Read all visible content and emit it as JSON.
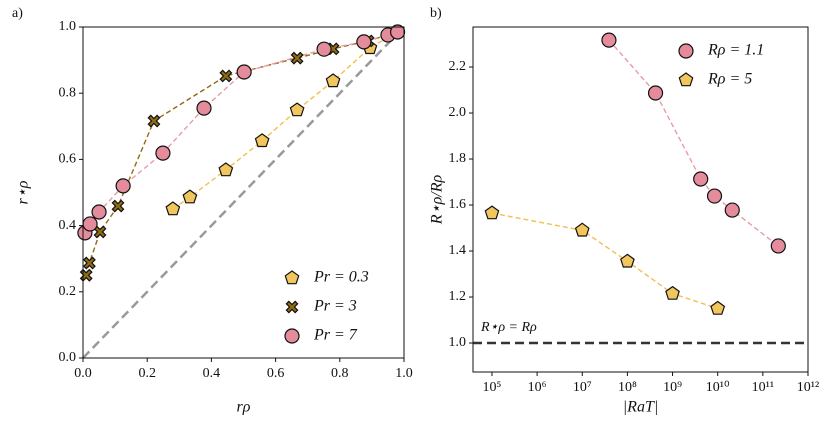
{
  "chart_data": [
    {
      "type": "scatter",
      "panel_label": "a)",
      "xlabel": "rρ",
      "ylabel": "r⋆ρ",
      "xlim": [
        0,
        1
      ],
      "ylim": [
        0,
        1
      ],
      "xticks": [
        {
          "value": 0,
          "label": "0.0"
        },
        {
          "value": 0.2,
          "label": "0.2"
        },
        {
          "value": 0.4,
          "label": "0.4"
        },
        {
          "value": 0.6,
          "label": "0.6"
        },
        {
          "value": 0.8,
          "label": "0.8"
        },
        {
          "value": 1,
          "label": "1.0"
        }
      ],
      "yticks": [
        {
          "value": 0,
          "label": "0.0"
        },
        {
          "value": 0.2,
          "label": "0.2"
        },
        {
          "value": 0.4,
          "label": "0.4"
        },
        {
          "value": 0.6,
          "label": "0.6"
        },
        {
          "value": 0.8,
          "label": "0.8"
        },
        {
          "value": 1,
          "label": "1.0"
        }
      ],
      "diagonal": true,
      "legend": "lower right",
      "series": [
        {
          "name": "Pr = 0.3",
          "marker": "pentagon",
          "color": "#f2c65e",
          "line_color": "#f0c050",
          "x": [
            0.28,
            0.333,
            0.445,
            0.558,
            0.667,
            0.779,
            0.894,
            0.98
          ],
          "values": [
            0.45,
            0.486,
            0.568,
            0.656,
            0.749,
            0.837,
            0.937,
            0.985
          ]
        },
        {
          "name": "Pr = 3",
          "marker": "x",
          "color": "#8f6b12",
          "line_color": "#8f6b12",
          "x": [
            0.01,
            0.02,
            0.053,
            0.109,
            0.221,
            0.445,
            0.667,
            0.779,
            0.888,
            0.98
          ],
          "values": [
            0.25,
            0.287,
            0.381,
            0.459,
            0.716,
            0.852,
            0.906,
            0.934,
            0.958,
            0.985
          ]
        },
        {
          "name": "Pr = 7",
          "marker": "circle",
          "color": "#e58c9c",
          "line_color": "#ea9aaa",
          "x": [
            0.006,
            0.022,
            0.05,
            0.125,
            0.249,
            0.377,
            0.502,
            0.751,
            0.875,
            0.95,
            0.98
          ],
          "values": [
            0.378,
            0.405,
            0.441,
            0.52,
            0.619,
            0.755,
            0.864,
            0.933,
            0.955,
            0.976,
            0.985
          ]
        }
      ]
    },
    {
      "type": "scatter",
      "panel_label": "b)",
      "xlabel": "|RaT|",
      "ylabel": "R⋆ρ/Rρ",
      "log_x": true,
      "xlim": [
        38000,
        1000000000000
      ],
      "ylim": [
        0.874,
        2.374
      ],
      "xticks": [
        {
          "value": 100000,
          "label": "10⁵"
        },
        {
          "value": 1000000,
          "label": "10⁶"
        },
        {
          "value": 10000000,
          "label": "10⁷"
        },
        {
          "value": 100000000,
          "label": "10⁸"
        },
        {
          "value": 1000000000,
          "label": "10⁹"
        },
        {
          "value": 10000000000,
          "label": "10¹⁰"
        },
        {
          "value": 100000000000,
          "label": "10¹¹"
        },
        {
          "value": 1000000000000,
          "label": "10¹²"
        }
      ],
      "yticks": [
        {
          "value": 1,
          "label": "1.0"
        },
        {
          "value": 1.2,
          "label": "1.2"
        },
        {
          "value": 1.4,
          "label": "1.4"
        },
        {
          "value": 1.6,
          "label": "1.6"
        },
        {
          "value": 1.8,
          "label": "1.8"
        },
        {
          "value": 2,
          "label": "2.0"
        },
        {
          "value": 2.2,
          "label": "2.2"
        }
      ],
      "hline": 1,
      "hline_label": "R⋆ρ = Rρ",
      "legend": "upper right",
      "series": [
        {
          "name": "Rρ = 1.1",
          "marker": "circle",
          "color": "#e58c9c",
          "line_color": "#ea9aaa",
          "x": [
            39000000,
            420000000,
            4200000000,
            8500000000,
            21000000000,
            220000000000
          ],
          "values": [
            2.317,
            2.087,
            1.713,
            1.639,
            1.578,
            1.422
          ]
        },
        {
          "name": "Rρ = 5",
          "marker": "pentagon",
          "color": "#f2c65e",
          "line_color": "#f0c050",
          "x": [
            100000,
            10000000,
            100000000,
            1000000000,
            10000000000
          ],
          "values": [
            1.565,
            1.49,
            1.355,
            1.215,
            1.15
          ]
        }
      ]
    }
  ]
}
